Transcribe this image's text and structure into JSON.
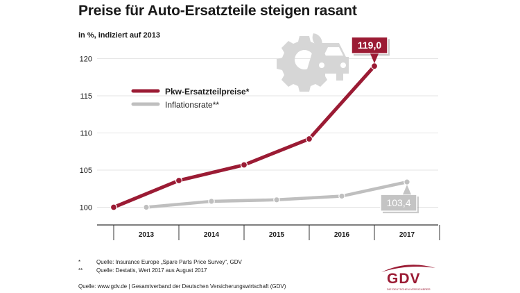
{
  "header": {
    "title": "Preise für Auto-Ersatzteile steigen rasant",
    "subtitle": "in %, indiziert auf 2013"
  },
  "chart_data": {
    "type": "line",
    "title": "Preise für Auto-Ersatzteile steigen rasant",
    "subtitle": "in %, indiziert auf 2013",
    "x_categories": [
      "2013",
      "2014",
      "2015",
      "2016",
      "2017"
    ],
    "ylim": [
      98,
      123
    ],
    "yticks": [
      100,
      105,
      110,
      115,
      120
    ],
    "grid": "horizontal",
    "legend_position": "top-left",
    "series": [
      {
        "name": "Pkw-Ersatzteilpreise*",
        "color": "#9b1b34",
        "points": [
          {
            "x": 2012.5,
            "y": 100.0
          },
          {
            "x": 2013.5,
            "y": 103.6
          },
          {
            "x": 2014.5,
            "y": 105.7
          },
          {
            "x": 2015.5,
            "y": 109.2
          },
          {
            "x": 2016.5,
            "y": 119.0
          }
        ],
        "end_label": "119,0"
      },
      {
        "name": "Inflationsrate**",
        "color": "#bfbfbf",
        "points": [
          {
            "x": 2013.0,
            "y": 100.0
          },
          {
            "x": 2014.0,
            "y": 100.8
          },
          {
            "x": 2015.0,
            "y": 101.0
          },
          {
            "x": 2016.0,
            "y": 101.5
          },
          {
            "x": 2017.0,
            "y": 103.4
          }
        ],
        "end_label": "103,4"
      }
    ]
  },
  "footnotes": [
    {
      "mark": "*",
      "text": "Quelle: Insurance Europe „Spare Parts Price Survey“, GDV"
    },
    {
      "mark": "**",
      "text": "Quelle: Destatis, Wert 2017 aus August 2017"
    }
  ],
  "source": "Quelle: www.gdv.de | Gesamtverband der Deutschen Versicherungswirtschaft (GDV)",
  "logo": {
    "text": "GDV",
    "subtext": "DIE DEUTSCHEN VERSICHERER",
    "color": "#9b1b34"
  },
  "icons": {
    "decoration": "car-wrench-gear-icon"
  }
}
